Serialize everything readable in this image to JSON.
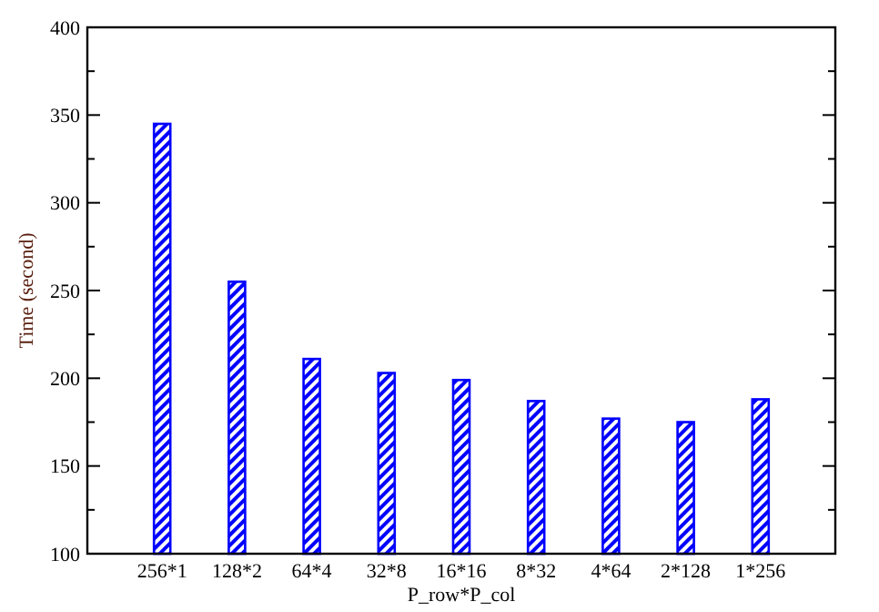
{
  "chart_data": {
    "type": "bar",
    "xlabel": "P_row*P_col",
    "ylabel": "Time (second)",
    "categories": [
      "256*1",
      "128*2",
      "64*4",
      "32*8",
      "16*16",
      "8*32",
      "4*64",
      "2*128",
      "1*256"
    ],
    "values": [
      345,
      255,
      211,
      203,
      199,
      187,
      177,
      175,
      188
    ],
    "color": "#0000ff",
    "ylim": [
      100,
      400
    ],
    "yticks": [
      100,
      {
        "value": 125,
        "label": null
      },
      150,
      {
        "value": 175,
        "label": null
      },
      200,
      {
        "value": 225,
        "label": null
      },
      250,
      {
        "value": 275,
        "label": null
      },
      300,
      {
        "value": 325,
        "label": null
      },
      350,
      {
        "value": 375,
        "label": null
      },
      400
    ],
    "grid": false
  }
}
